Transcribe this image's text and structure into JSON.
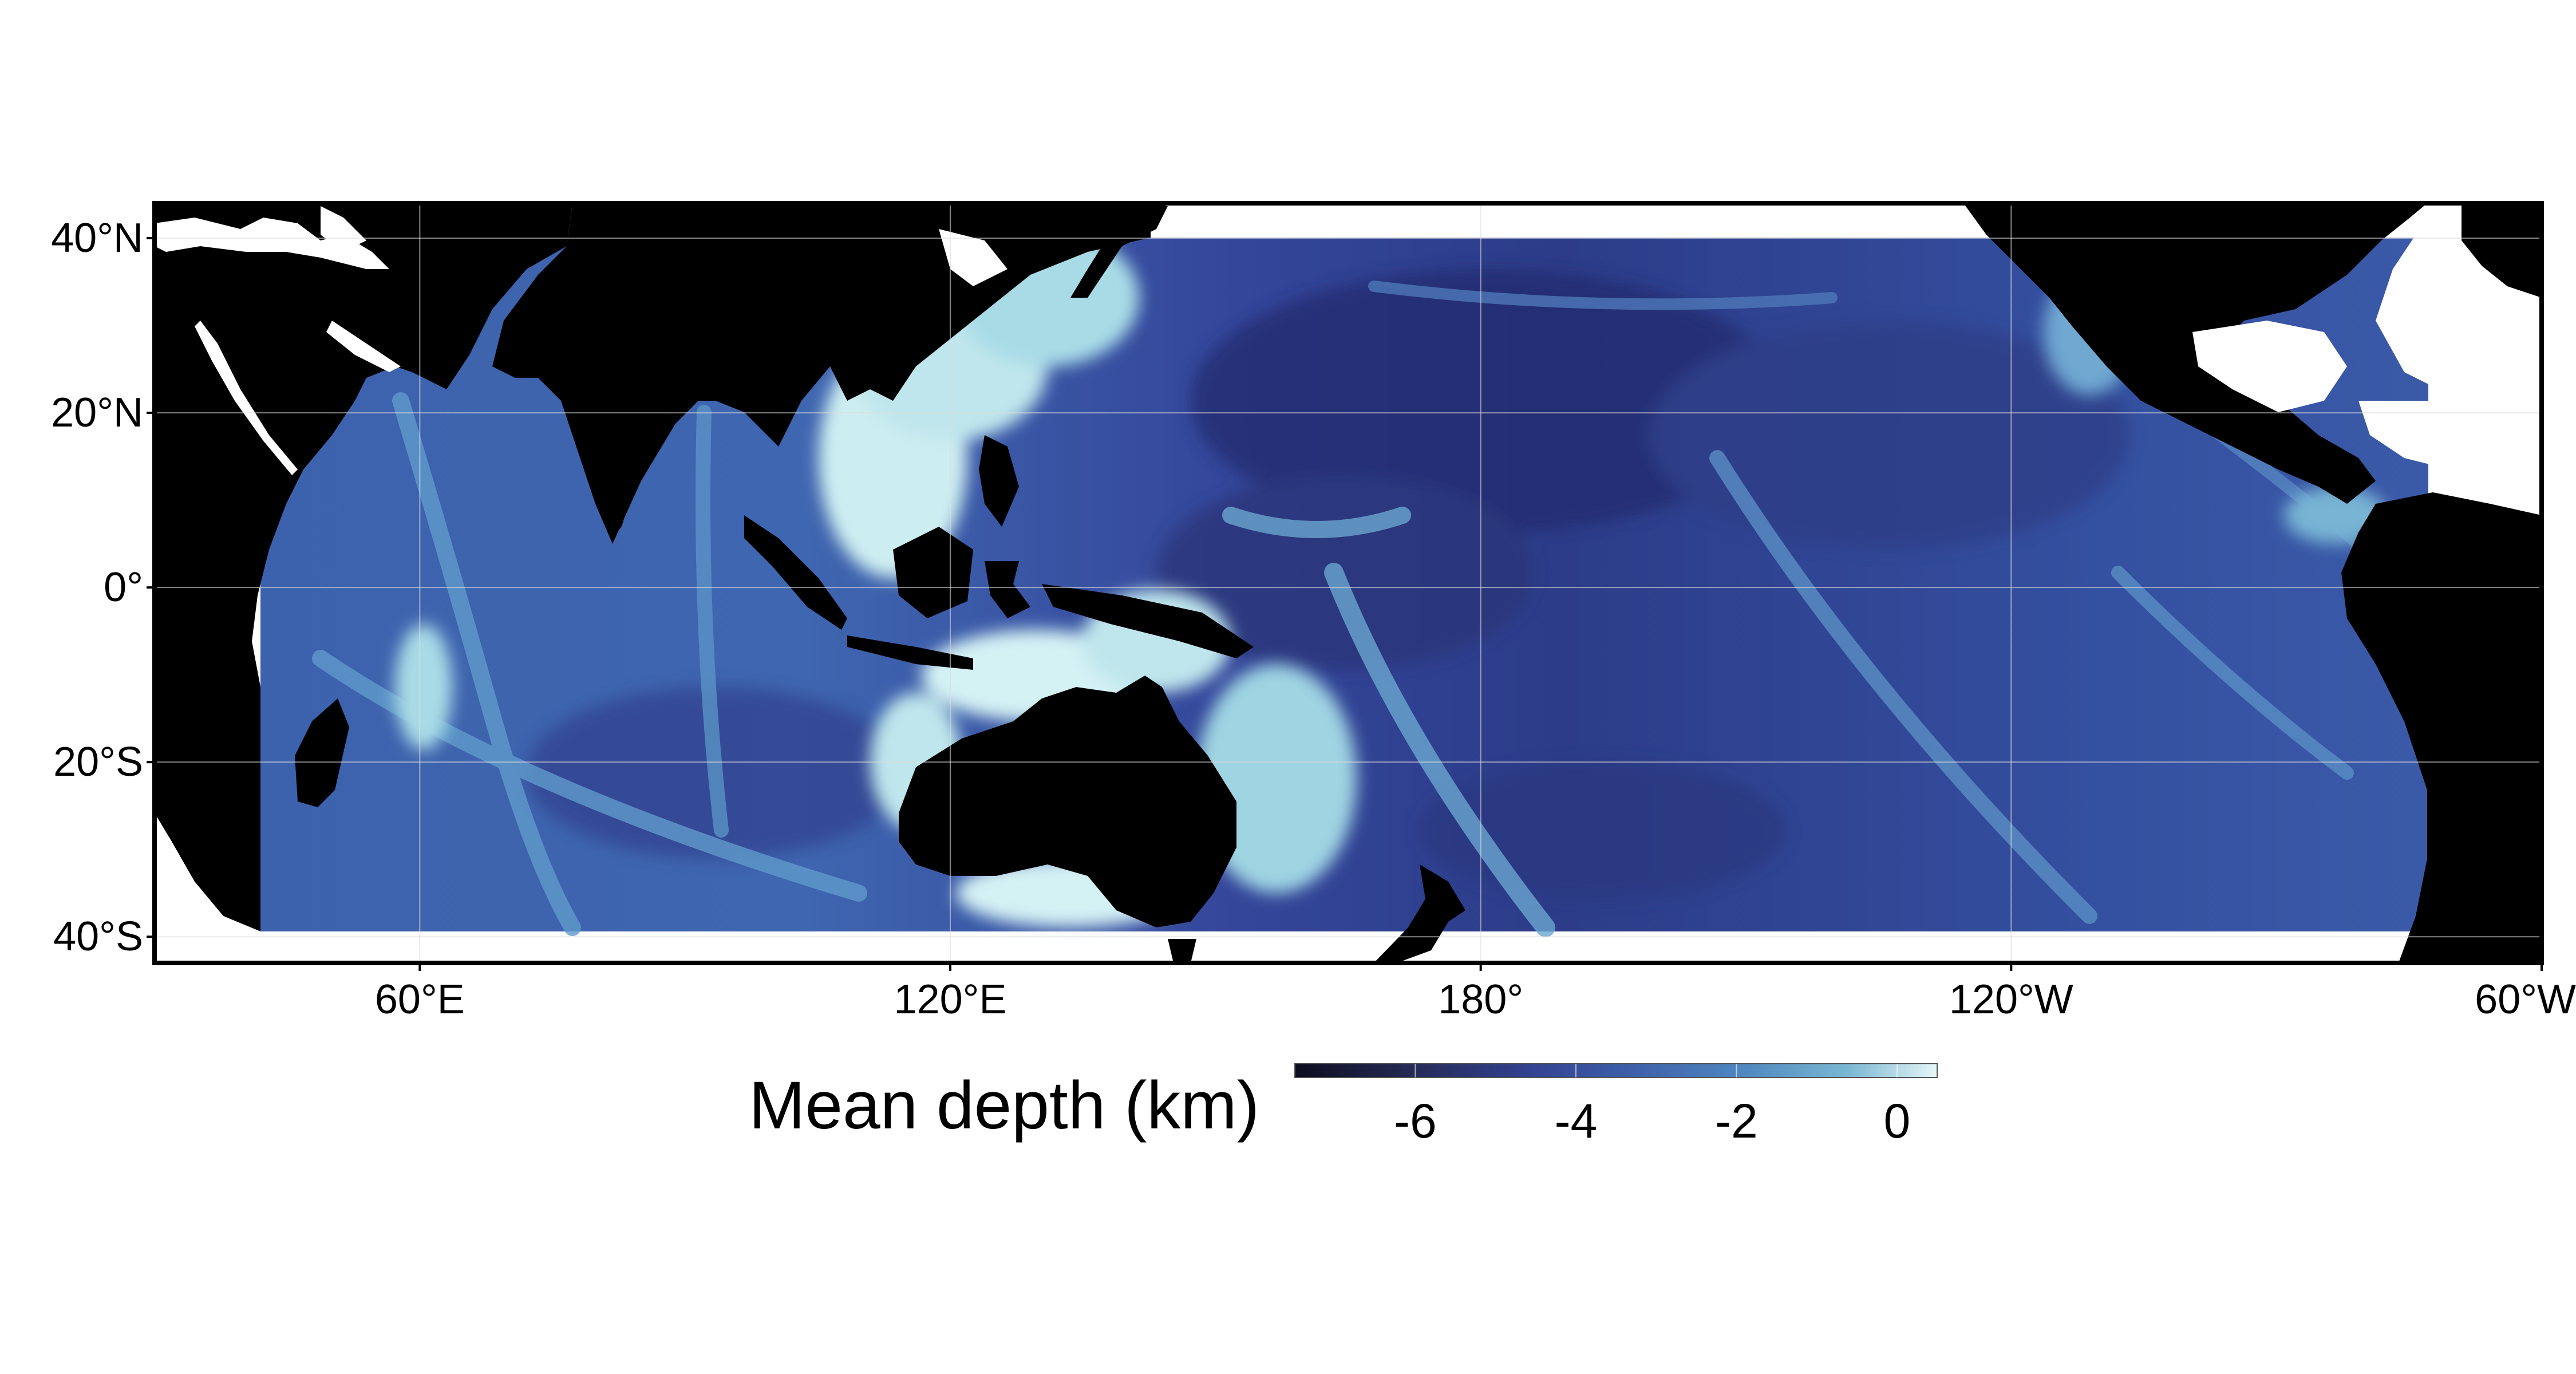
{
  "map": {
    "extent": {
      "lon_min": 30,
      "lon_max": 300,
      "lat_min": -43,
      "lat_max": 44
    },
    "data_extent": {
      "lon_min": 42,
      "lon_max": 290,
      "lat_min": -40,
      "lat_max": 40
    },
    "land_color": "#000000",
    "no_data_color": "#ffffff",
    "lat_ticks": [
      {
        "value": 40,
        "label": "40°N"
      },
      {
        "value": 20,
        "label": "20°N"
      },
      {
        "value": 0,
        "label": "0°"
      },
      {
        "value": -20,
        "label": "20°S"
      },
      {
        "value": -40,
        "label": "40°S"
      }
    ],
    "lon_ticks": [
      {
        "value": 60,
        "label": "60°E"
      },
      {
        "value": 120,
        "label": "120°E"
      },
      {
        "value": 180,
        "label": "180°"
      },
      {
        "value": 240,
        "label": "120°W"
      },
      {
        "value": 300,
        "label": "60°W"
      }
    ],
    "grid": true
  },
  "colorbar": {
    "title": "Mean depth (km)",
    "range": [
      -7.5,
      0.5
    ],
    "ticks": [
      {
        "value": -6,
        "label": "-6"
      },
      {
        "value": -4,
        "label": "-4"
      },
      {
        "value": -2,
        "label": "-2"
      },
      {
        "value": 0,
        "label": "0"
      }
    ],
    "colors": [
      "#0d0d1f",
      "#252a55",
      "#32418f",
      "#3d5ea8",
      "#4f88bf",
      "#7ab7d2",
      "#e6f6f8"
    ]
  }
}
